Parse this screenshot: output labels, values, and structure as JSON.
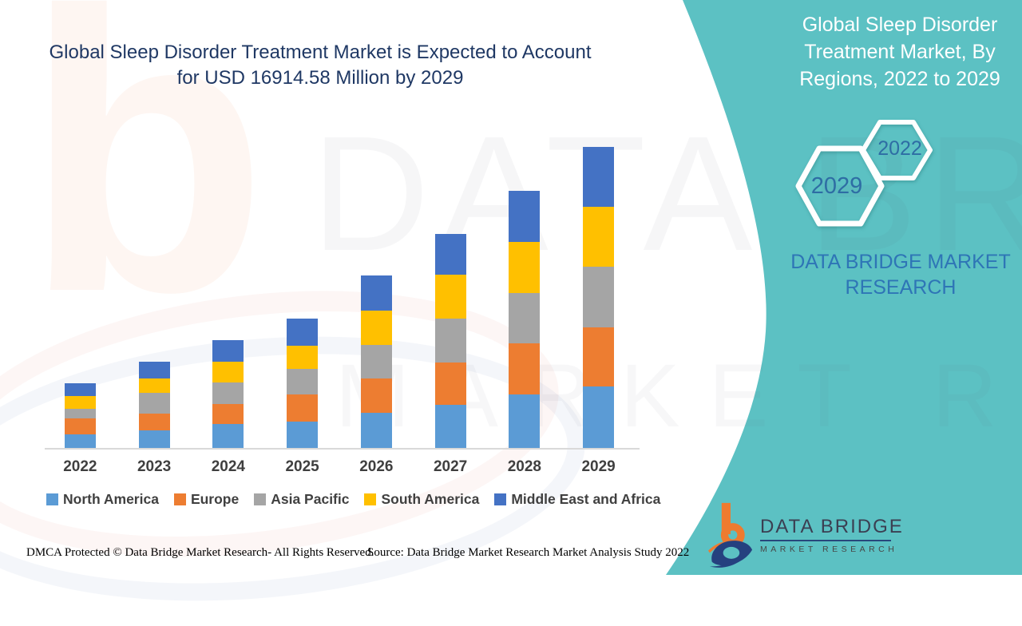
{
  "page": {
    "teal_accent": "#5CC1C3",
    "background": "#FFFFFF"
  },
  "main_title": {
    "lines": [
      "Global Sleep Disorder Treatment Market is Expected to Account",
      "for USD 16914.58 Million by 2029"
    ],
    "color": "#1F3864"
  },
  "chart_data": {
    "type": "bar",
    "stacked": true,
    "title": "Global Sleep Disorder Treatment Market is Expected to Account for USD 16914.58 Million by 2029",
    "unit": "USD Million",
    "categories": [
      "2022",
      "2023",
      "2024",
      "2025",
      "2026",
      "2027",
      "2028",
      "2029"
    ],
    "series": [
      {
        "name": "North America",
        "color": "#5B9BD5",
        "values": [
          760,
          990,
          1350,
          1480,
          1970,
          2420,
          3010,
          3455
        ]
      },
      {
        "name": "Europe",
        "color": "#ED7D31",
        "values": [
          900,
          940,
          1120,
          1530,
          1930,
          2380,
          2870,
          3320
        ]
      },
      {
        "name": "Asia Pacific",
        "color": "#A5A5A5",
        "values": [
          540,
          1170,
          1210,
          1440,
          1880,
          2470,
          2830,
          3410
        ]
      },
      {
        "name": "South America",
        "color": "#FFC000",
        "values": [
          720,
          810,
          1170,
          1300,
          1930,
          2470,
          2870,
          3365
        ]
      },
      {
        "name": "Middle East and Africa",
        "color": "#4472C4",
        "values": [
          720,
          940,
          1210,
          1530,
          1970,
          2290,
          2870,
          3364.58
        ]
      }
    ],
    "stack_order_bottom_to_top": [
      "North America",
      "Europe",
      "Asia Pacific",
      "South America",
      "Middle East and Africa"
    ],
    "labeled_total_2029": 16914.58,
    "values_are_estimates": true,
    "legend_position": "bottom",
    "gridlines": false,
    "y_axis_hidden": true
  },
  "right_panel": {
    "title_lines": [
      "Global Sleep Disorder",
      "Treatment Market, By",
      "Regions, 2022 to 2029"
    ],
    "hexagon_years": {
      "small": "2022",
      "large": "2029"
    },
    "brand_lines": [
      "DATA BRIDGE MARKET",
      "RESEARCH"
    ],
    "brand_color": "#2E75B6"
  },
  "footer": {
    "dmca": "DMCA Protected © Data Bridge Market Research- All Rights Reserved.",
    "source": "Source: Data Bridge Market Research Market Analysis Study 2022"
  },
  "logo": {
    "title": "DATA BRIDGE",
    "subtitle": "MARKET RESEARCH"
  },
  "watermark": {
    "letter": "b",
    "line1": "DATA BRIDGE",
    "line2": "MARKET RESEARCH"
  }
}
